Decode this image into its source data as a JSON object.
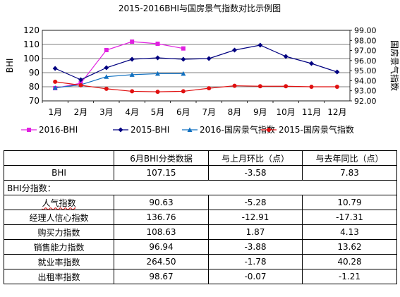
{
  "chart_data": {
    "type": "line",
    "title": "2015-2016BHI与国房景气指数对比示例图",
    "categories": [
      "1月",
      "2月",
      "3月",
      "4月",
      "5月",
      "6月",
      "7月",
      "8月",
      "9月",
      "10月",
      "11月",
      "12月"
    ],
    "ylabel": "BHI",
    "y2label": "国房景气指数",
    "ylim": [
      70,
      120
    ],
    "y_ticks": [
      "70",
      "80",
      "90",
      "100",
      "110",
      "120"
    ],
    "y2lim": [
      92,
      99
    ],
    "y2_ticks": [
      "92.00",
      "93.00",
      "94.00",
      "95.00",
      "96.00",
      "97.00",
      "98.00",
      "99.00"
    ],
    "grid": true,
    "legend_position": "bottom",
    "series": [
      {
        "name": "2016-BHI",
        "axis": "left",
        "color": "#e020e0",
        "marker": "square",
        "values": [
          79,
          82.5,
          106,
          112,
          110.5,
          107.15,
          null,
          null,
          null,
          null,
          null,
          null
        ]
      },
      {
        "name": "2015-BHI",
        "axis": "left",
        "color": "#000080",
        "marker": "diamond",
        "values": [
          93,
          85,
          93.5,
          99.5,
          100.5,
          99.5,
          100,
          106,
          109.5,
          101.5,
          96.5,
          90.5
        ]
      },
      {
        "name": "2016-国房景气指数",
        "axis": "right",
        "color": "#1070c0",
        "marker": "triangle",
        "values": [
          93.3,
          93.6,
          94.4,
          94.6,
          94.7,
          94.7,
          null,
          null,
          null,
          null,
          null,
          null
        ]
      },
      {
        "name": "2015-国房景气指数",
        "axis": "right",
        "color": "#e01010",
        "marker": "circle",
        "values": [
          93.9,
          93.55,
          93.2,
          92.95,
          92.9,
          92.95,
          93.25,
          93.5,
          93.45,
          93.45,
          93.4,
          93.4
        ]
      }
    ]
  },
  "table": {
    "headers": [
      "",
      "6月BHI分类数据",
      "与上月环比（点）",
      "与去年同比（点）"
    ],
    "rows": [
      {
        "label": "BHI",
        "values": [
          "107.15",
          "-3.58",
          "7.83"
        ],
        "align": "center",
        "wavy": false
      },
      {
        "label": "BHI分指数：",
        "values": [
          "",
          "",
          ""
        ],
        "align": "left",
        "wavy": false,
        "span": true
      },
      {
        "label": "人气指数",
        "values": [
          "90.63",
          "-5.28",
          "10.79"
        ],
        "align": "center",
        "wavy": true
      },
      {
        "label": "经理人信心指数",
        "values": [
          "136.76",
          "-12.91",
          "-17.31"
        ],
        "align": "center",
        "wavy": false
      },
      {
        "label": "购买力指数",
        "values": [
          "108.63",
          "1.87",
          "4.13"
        ],
        "align": "center",
        "wavy": false
      },
      {
        "label": "销售能力指数",
        "values": [
          "96.94",
          "-3.88",
          "13.62"
        ],
        "align": "center",
        "wavy": false
      },
      {
        "label": "就业率指数",
        "values": [
          "264.50",
          "-1.78",
          "40.28"
        ],
        "align": "center",
        "wavy": false
      },
      {
        "label": "出租率指数",
        "values": [
          "98.67",
          "-0.07",
          "-1.21"
        ],
        "align": "center",
        "wavy": false
      }
    ]
  }
}
